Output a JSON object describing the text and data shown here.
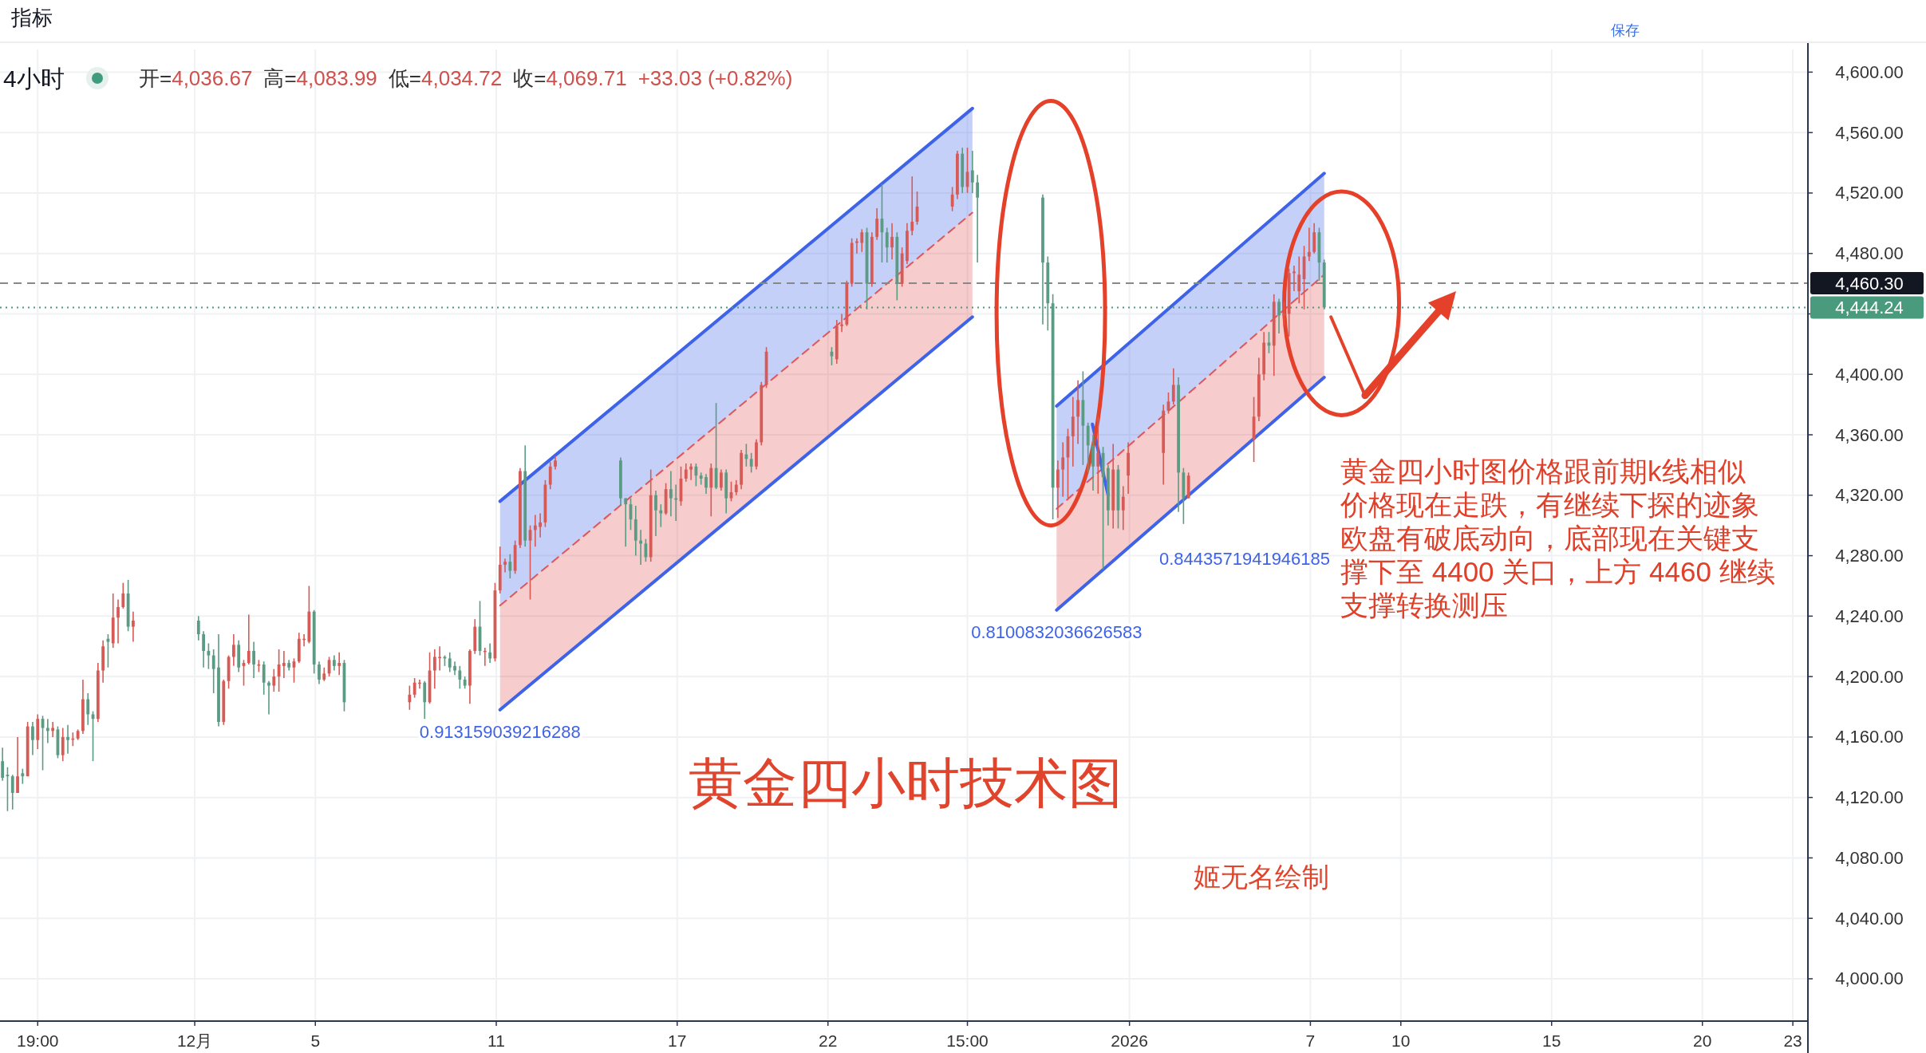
{
  "chart_data": {
    "type": "candlestick",
    "title": "黄金四小时技术图",
    "annotations": [
      "指标",
      "保存",
      "4小时",
      "开=4,036.67",
      "高=4,083.99",
      "低=4,034.72",
      "收=4,069.71",
      "+33.03 (+0.82%)",
      "黄金四小时图价格跟前期k线相似",
      "价格现在走跌，有继续下探的迹象",
      "欧盘有破底动向，底部现在关键支",
      "撑下至 4400 关口，上方 4460 继续",
      "支撑转换测压",
      "姬无名绘制",
      {
        "text": "0.913159039216288",
        "x": "2025-12-11T03:00",
        "y": 4178
      },
      "0.8443571941946185",
      {
        "text": "0.8100832036626583",
        "x": "2025-12-29T14:00",
        "y": 4244
      }
    ],
    "x": [
      "2025-11-24T15:00",
      "2025-11-24T19:00",
      "2025-11-24T23:00",
      "2025-11-25T03:00",
      "2025-11-25T07:00",
      "2025-11-25T11:00",
      "2025-11-25T15:00",
      "2025-11-25T19:00",
      "2025-11-25T23:00",
      "2025-11-26T03:00",
      "2025-11-26T07:00",
      "2025-11-26T11:00",
      "2025-11-26T15:00",
      "2025-11-26T19:00",
      "2025-11-26T23:00",
      "2025-11-27T03:00",
      "2025-11-27T07:00",
      "2025-11-27T11:00",
      "2025-11-27T15:00",
      "2025-11-27T19:00",
      "2025-11-27T23:00",
      "2025-11-28T03:00",
      "2025-11-28T07:00",
      "2025-11-28T11:00",
      "2025-11-28T15:00",
      "2025-11-28T19:00",
      "2025-11-28T23:00",
      "2025-12-01T03:00",
      "2025-12-01T07:00",
      "2025-12-01T11:00",
      "2025-12-01T15:00",
      "2025-12-01T19:00",
      "2025-12-01T23:00",
      "2025-12-02T03:00",
      "2025-12-02T07:00",
      "2025-12-02T11:00",
      "2025-12-02T15:00",
      "2025-12-02T19:00",
      "2025-12-02T23:00",
      "2025-12-03T03:00",
      "2025-12-03T07:00",
      "2025-12-03T11:00",
      "2025-12-03T15:00",
      "2025-12-03T19:00",
      "2025-12-03T23:00",
      "2025-12-04T03:00",
      "2025-12-04T07:00",
      "2025-12-04T11:00",
      "2025-12-04T15:00",
      "2025-12-04T19:00",
      "2025-12-04T23:00",
      "2025-12-05T03:00",
      "2025-12-05T07:00",
      "2025-12-05T11:00",
      "2025-12-05T15:00",
      "2025-12-05T19:00",
      "2025-12-05T23:00",
      "2025-12-08T03:00",
      "2025-12-08T07:00",
      "2025-12-08T11:00",
      "2025-12-08T15:00",
      "2025-12-08T19:00",
      "2025-12-08T23:00",
      "2025-12-09T03:00",
      "2025-12-09T07:00",
      "2025-12-09T11:00",
      "2025-12-09T15:00",
      "2025-12-09T19:00",
      "2025-12-09T23:00",
      "2025-12-10T03:00",
      "2025-12-10T07:00",
      "2025-12-10T11:00",
      "2025-12-10T15:00",
      "2025-12-10T19:00",
      "2025-12-10T23:00",
      "2025-12-11T03:00",
      "2025-12-11T07:00",
      "2025-12-11T11:00",
      "2025-12-11T15:00",
      "2025-12-11T19:00",
      "2025-12-11T23:00",
      "2025-12-12T03:00",
      "2025-12-12T07:00",
      "2025-12-12T11:00",
      "2025-12-12T15:00",
      "2025-12-12T19:00",
      "2025-12-12T23:00",
      "2025-12-15T03:00",
      "2025-12-15T07:00",
      "2025-12-15T11:00",
      "2025-12-15T15:00",
      "2025-12-15T19:00",
      "2025-12-15T23:00",
      "2025-12-16T03:00",
      "2025-12-16T07:00",
      "2025-12-16T11:00",
      "2025-12-16T15:00",
      "2025-12-16T19:00",
      "2025-12-16T23:00",
      "2025-12-17T03:00",
      "2025-12-17T07:00",
      "2025-12-17T11:00",
      "2025-12-17T15:00",
      "2025-12-17T19:00",
      "2025-12-17T23:00",
      "2025-12-18T03:00",
      "2025-12-18T07:00",
      "2025-12-18T11:00",
      "2025-12-18T15:00",
      "2025-12-18T19:00",
      "2025-12-18T23:00",
      "2025-12-19T03:00",
      "2025-12-19T07:00",
      "2025-12-19T11:00",
      "2025-12-19T15:00",
      "2025-12-19T19:00",
      "2025-12-19T23:00",
      "2025-12-22T03:00",
      "2025-12-22T07:00",
      "2025-12-22T11:00",
      "2025-12-22T15:00",
      "2025-12-22T19:00",
      "2025-12-22T23:00",
      "2025-12-23T03:00",
      "2025-12-23T07:00",
      "2025-12-23T11:00",
      "2025-12-23T15:00",
      "2025-12-23T19:00",
      "2025-12-23T23:00",
      "2025-12-24T03:00",
      "2025-12-24T07:00",
      "2025-12-24T11:00",
      "2025-12-24T15:00",
      "2025-12-24T19:00",
      "2025-12-24T23:00",
      "2025-12-26T03:00",
      "2025-12-26T07:00",
      "2025-12-26T11:00",
      "2025-12-26T15:00",
      "2025-12-26T19:00",
      "2025-12-26T23:00",
      "2025-12-29T03:00",
      "2025-12-29T07:00",
      "2025-12-29T11:00",
      "2025-12-29T15:00",
      "2025-12-29T19:00",
      "2025-12-29T23:00",
      "2025-12-30T03:00",
      "2025-12-30T07:00",
      "2025-12-30T11:00",
      "2025-12-30T15:00",
      "2025-12-30T19:00",
      "2025-12-30T23:00",
      "2025-12-31T03:00",
      "2025-12-31T07:00",
      "2025-12-31T11:00",
      "2025-12-31T15:00",
      "2025-12-31T19:00",
      "2025-12-31T23:00",
      "2026-01-02T03:00",
      "2026-01-02T07:00",
      "2026-01-02T11:00",
      "2026-01-02T15:00",
      "2026-01-02T19:00",
      "2026-01-02T23:00",
      "2026-01-05T03:00",
      "2026-01-05T07:00",
      "2026-01-05T11:00",
      "2026-01-05T15:00",
      "2026-01-05T19:00",
      "2026-01-05T23:00",
      "2026-01-06T03:00",
      "2026-01-06T07:00",
      "2026-01-06T11:00",
      "2026-01-06T15:00",
      "2026-01-06T19:00",
      "2026-01-06T23:00",
      "2026-01-07T03:00",
      "2026-01-07T07:00",
      "2026-01-07T11:00"
    ],
    "ohlc": [
      [
        4144,
        4153,
        4131,
        4133
      ],
      [
        4135,
        4140,
        4111,
        4134
      ],
      [
        4134,
        4135,
        4112,
        4123
      ],
      [
        4123,
        4160,
        4123,
        4134
      ],
      [
        4136,
        4139,
        4129,
        4134
      ],
      [
        4134,
        4170,
        4134,
        4167
      ],
      [
        4167,
        4170,
        4148,
        4158
      ],
      [
        4158,
        4175,
        4152,
        4172
      ],
      [
        4172,
        4174,
        4138,
        4166
      ],
      [
        4166,
        4172,
        4156,
        4164
      ],
      [
        4164,
        4170,
        4160,
        4166
      ],
      [
        4165,
        4167,
        4146,
        4148
      ],
      [
        4148,
        4166,
        4144,
        4160
      ],
      [
        4160,
        4168,
        4149,
        4158
      ],
      [
        4159,
        4163,
        4154,
        4159
      ],
      [
        4159,
        4165,
        4158,
        4164
      ],
      [
        4164,
        4198,
        4162,
        4185
      ],
      [
        4185,
        4189,
        4168,
        4175
      ],
      [
        4175,
        4177,
        4144,
        4172
      ],
      [
        4172,
        4209,
        4170,
        4204
      ],
      [
        4204,
        4224,
        4196,
        4220
      ],
      [
        4225,
        4228,
        4206,
        4223
      ],
      [
        4222,
        4255,
        4219,
        4239
      ],
      [
        4239,
        4251,
        4222,
        4246
      ],
      [
        4246,
        4262,
        4245,
        4255
      ],
      [
        4255,
        4264,
        4230,
        4233
      ],
      [
        4233,
        4243,
        4223,
        4237
      ],
      [
        4237,
        4240,
        4224,
        4228
      ],
      [
        4228,
        4230,
        4206,
        4217
      ],
      [
        4217,
        4222,
        4205,
        4214
      ],
      [
        4214,
        4218,
        4189,
        4205
      ],
      [
        4206,
        4228,
        4167,
        4170
      ],
      [
        4170,
        4198,
        4168,
        4197
      ],
      [
        4197,
        4214,
        4192,
        4213
      ],
      [
        4213,
        4228,
        4207,
        4221
      ],
      [
        4221,
        4224,
        4203,
        4206
      ],
      [
        4207,
        4211,
        4194,
        4209
      ],
      [
        4209,
        4241,
        4208,
        4217
      ],
      [
        4217,
        4223,
        4199,
        4208
      ],
      [
        4208,
        4211,
        4203,
        4208
      ],
      [
        4208,
        4210,
        4188,
        4196
      ],
      [
        4196,
        4197,
        4175,
        4194
      ],
      [
        4194,
        4205,
        4190,
        4200
      ],
      [
        4200,
        4218,
        4190,
        4208
      ],
      [
        4207,
        4217,
        4199,
        4209
      ],
      [
        4209,
        4211,
        4204,
        4206
      ],
      [
        4206,
        4212,
        4196,
        4210
      ],
      [
        4210,
        4229,
        4209,
        4225
      ],
      [
        4225,
        4228,
        4220,
        4225
      ],
      [
        4223,
        4260,
        4222,
        4243
      ],
      [
        4243,
        4244,
        4202,
        4208
      ],
      [
        4208,
        4210,
        4195,
        4198
      ],
      [
        4198,
        4206,
        4197,
        4202
      ],
      [
        4202,
        4213,
        4200,
        4211
      ],
      [
        4211,
        4214,
        4204,
        4207
      ],
      [
        4207,
        4216,
        4201,
        4209
      ],
      [
        4209,
        4211,
        4177,
        4183
      ],
      [
        4183,
        4194,
        4178,
        4188
      ],
      [
        4188,
        4199,
        4186,
        4196
      ],
      [
        4196,
        4198,
        4192,
        4196
      ],
      [
        4196,
        4197,
        4172,
        4183
      ],
      [
        4183,
        4216,
        4182,
        4204
      ],
      [
        4204,
        4218,
        4192,
        4213
      ],
      [
        4213,
        4220,
        4204,
        4213
      ],
      [
        4213,
        4214,
        4207,
        4212
      ],
      [
        4212,
        4216,
        4203,
        4206
      ],
      [
        4207,
        4210,
        4201,
        4204
      ],
      [
        4204,
        4207,
        4192,
        4198
      ],
      [
        4198,
        4200,
        4192,
        4194
      ],
      [
        4194,
        4218,
        4182,
        4217
      ],
      [
        4217,
        4238,
        4215,
        4233
      ],
      [
        4233,
        4250,
        4214,
        4217
      ],
      [
        4217,
        4219,
        4207,
        4217
      ],
      [
        4216,
        4222,
        4209,
        4212
      ],
      [
        4212,
        4262,
        4210,
        4257
      ],
      [
        4257,
        4286,
        4255,
        4274
      ],
      [
        4274,
        4278,
        4269,
        4276
      ],
      [
        4276,
        4281,
        4265,
        4270
      ],
      [
        4270,
        4290,
        4268,
        4287
      ],
      [
        4287,
        4338,
        4285,
        4336
      ],
      [
        4336,
        4353,
        4286,
        4290
      ],
      [
        4290,
        4300,
        4251,
        4297
      ],
      [
        4297,
        4307,
        4286,
        4300
      ],
      [
        4299,
        4308,
        4292,
        4302
      ],
      [
        4302,
        4330,
        4299,
        4327
      ],
      [
        4327,
        4342,
        4324,
        4339
      ],
      [
        4339,
        4346,
        4337,
        4343
      ],
      [
        4343,
        4345,
        4313,
        4318
      ],
      [
        4318,
        4318,
        4286,
        4314
      ],
      [
        4314,
        4318,
        4297,
        4304
      ],
      [
        4304,
        4313,
        4280,
        4290
      ],
      [
        4290,
        4297,
        4274,
        4288
      ],
      [
        4288,
        4291,
        4276,
        4279
      ],
      [
        4279,
        4337,
        4276,
        4320
      ],
      [
        4320,
        4323,
        4293,
        4310
      ],
      [
        4310,
        4314,
        4299,
        4308
      ],
      [
        4308,
        4328,
        4307,
        4324
      ],
      [
        4324,
        4336,
        4306,
        4318
      ],
      [
        4318,
        4327,
        4303,
        4317
      ],
      [
        4316,
        4339,
        4313,
        4331
      ],
      [
        4331,
        4341,
        4329,
        4337
      ],
      [
        4337,
        4341,
        4330,
        4339
      ],
      [
        4339,
        4341,
        4326,
        4333
      ],
      [
        4333,
        4335,
        4327,
        4331
      ],
      [
        4332,
        4334,
        4321,
        4325
      ],
      [
        4325,
        4341,
        4306,
        4338
      ],
      [
        4338,
        4381,
        4324,
        4325
      ],
      [
        4325,
        4337,
        4323,
        4335
      ],
      [
        4335,
        4337,
        4308,
        4318
      ],
      [
        4318,
        4329,
        4316,
        4322
      ],
      [
        4322,
        4330,
        4320,
        4327
      ],
      [
        4327,
        4350,
        4324,
        4348
      ],
      [
        4347,
        4354,
        4339,
        4344
      ],
      [
        4344,
        4348,
        4335,
        4339
      ],
      [
        4339,
        4357,
        4337,
        4355
      ],
      [
        4355,
        4395,
        4353,
        4393
      ],
      [
        4393,
        4418,
        4391,
        4415
      ],
      [
        4415,
        4418,
        4406,
        4412
      ],
      [
        4410,
        4436,
        4407,
        4432
      ],
      [
        4432,
        4440,
        4428,
        4433
      ],
      [
        4433,
        4462,
        4432,
        4460
      ],
      [
        4460,
        4490,
        4458,
        4487
      ],
      [
        4487,
        4490,
        4480,
        4488
      ],
      [
        4487,
        4496,
        4481,
        4494
      ],
      [
        4494,
        4497,
        4443,
        4460
      ],
      [
        4460,
        4494,
        4458,
        4491
      ],
      [
        4491,
        4510,
        4489,
        4503
      ],
      [
        4503,
        4526,
        4474,
        4494
      ],
      [
        4494,
        4497,
        4474,
        4484
      ],
      [
        4484,
        4500,
        4476,
        4491
      ],
      [
        4491,
        4494,
        4449,
        4460
      ],
      [
        4460,
        4484,
        4458,
        4480
      ],
      [
        4475,
        4500,
        4473,
        4495
      ],
      [
        4495,
        4531,
        4492,
        4501
      ],
      [
        4501,
        4521,
        4499,
        4511
      ],
      [
        4511,
        4524,
        4508,
        4519
      ],
      [
        4519,
        4548,
        4516,
        4546
      ],
      [
        4546,
        4550,
        4520,
        4524
      ],
      [
        4524,
        4550,
        4520,
        4534
      ],
      [
        4535,
        4548,
        4520,
        4527
      ],
      [
        4527,
        4532,
        4474,
        4517
      ],
      [
        4517,
        4519,
        4433,
        4474
      ],
      [
        4474,
        4478,
        4429,
        4447
      ],
      [
        4447,
        4453,
        4304,
        4325
      ],
      [
        4325,
        4343,
        4305,
        4337
      ],
      [
        4337,
        4355,
        4319,
        4345
      ],
      [
        4345,
        4364,
        4318,
        4359
      ],
      [
        4359,
        4385,
        4339,
        4372
      ],
      [
        4372,
        4396,
        4354,
        4383
      ],
      [
        4383,
        4402,
        4340,
        4366
      ],
      [
        4366,
        4368,
        4335,
        4353
      ],
      [
        4353,
        4360,
        4323,
        4339
      ],
      [
        4339,
        4372,
        4321,
        4348
      ],
      [
        4348,
        4352,
        4271,
        4332
      ],
      [
        4338,
        4340,
        4300,
        4310
      ],
      [
        4310,
        4354,
        4298,
        4337
      ],
      [
        4337,
        4340,
        4298,
        4310
      ],
      [
        4310,
        4326,
        4297,
        4319
      ],
      [
        4333,
        4355,
        4321,
        4348
      ],
      [
        4348,
        4380,
        4327,
        4376
      ],
      [
        4376,
        4388,
        4374,
        4382
      ],
      [
        4382,
        4404,
        4380,
        4393
      ],
      [
        4393,
        4398,
        4309,
        4335
      ],
      [
        4335,
        4338,
        4301,
        4318
      ],
      [
        4318,
        4335,
        4318,
        4333
      ],
      [
        4357,
        4385,
        4342,
        4372
      ],
      [
        4372,
        4411,
        4369,
        4400
      ],
      [
        4400,
        4428,
        4396,
        4421
      ],
      [
        4421,
        4428,
        4414,
        4419
      ],
      [
        4419,
        4453,
        4399,
        4448
      ],
      [
        4448,
        4450,
        4427,
        4439
      ],
      [
        4439,
        4448,
        4433,
        4440
      ],
      [
        4440,
        4470,
        4425,
        4467
      ],
      [
        4467,
        4472,
        4455,
        4468
      ],
      [
        4455,
        4478,
        4447,
        4466
      ],
      [
        4463,
        4485,
        4443,
        4478
      ],
      [
        4478,
        4497,
        4475,
        4481
      ],
      [
        4481,
        4500,
        4480,
        4494
      ],
      [
        4494,
        4497,
        4462,
        4474
      ],
      [
        4474,
        4476,
        4443,
        4444.24
      ]
    ],
    "colors": [
      "#5b9a83",
      "#5b9a83",
      "#5b9a83",
      "#d65a55",
      "#5b9a83",
      "#d65a55",
      "#5b9a83",
      "#d65a55",
      "#5b9a83",
      "#5b9a83",
      "#d65a55",
      "#5b9a83",
      "#d65a55",
      "#5b9a83",
      "#d65a55",
      "#d65a55",
      "#d65a55",
      "#5b9a83",
      "#5b9a83",
      "#d65a55",
      "#d65a55",
      "#5b9a83",
      "#d65a55",
      "#d65a55",
      "#d65a55",
      "#5b9a83",
      "#d65a55",
      "#5b9a83",
      "#5b9a83",
      "#5b9a83",
      "#5b9a83",
      "#5b9a83",
      "#d65a55",
      "#d65a55",
      "#d65a55",
      "#5b9a83",
      "#d65a55",
      "#d65a55",
      "#5b9a83",
      "#d65a55",
      "#5b9a83",
      "#5b9a83",
      "#d65a55",
      "#d65a55",
      "#d65a55",
      "#5b9a83",
      "#d65a55",
      "#d65a55",
      "#d65a55",
      "#d65a55",
      "#5b9a83",
      "#5b9a83",
      "#d65a55",
      "#d65a55",
      "#5b9a83",
      "#d65a55",
      "#5b9a83",
      "#d65a55",
      "#d65a55",
      "#d65a55",
      "#5b9a83",
      "#d65a55",
      "#d65a55",
      "#d65a55",
      "#5b9a83",
      "#5b9a83",
      "#5b9a83",
      "#5b9a83",
      "#5b9a83",
      "#d65a55",
      "#d65a55",
      "#5b9a83",
      "#d65a55",
      "#5b9a83",
      "#d65a55",
      "#d65a55",
      "#d65a55",
      "#5b9a83",
      "#d65a55",
      "#d65a55",
      "#5b9a83",
      "#d65a55",
      "#d65a55",
      "#d65a55",
      "#d65a55",
      "#d65a55",
      "#d65a55",
      "#5b9a83",
      "#5b9a83",
      "#5b9a83",
      "#5b9a83",
      "#5b9a83",
      "#5b9a83",
      "#d65a55",
      "#5b9a83",
      "#5b9a83",
      "#d65a55",
      "#5b9a83",
      "#5b9a83",
      "#d65a55",
      "#d65a55",
      "#d65a55",
      "#5b9a83",
      "#5b9a83",
      "#5b9a83",
      "#d65a55",
      "#5b9a83",
      "#d65a55",
      "#5b9a83",
      "#d65a55",
      "#d65a55",
      "#d65a55",
      "#5b9a83",
      "#5b9a83",
      "#d65a55",
      "#d65a55",
      "#d65a55",
      "#5b9a83",
      "#d65a55",
      "#d65a55",
      "#d65a55",
      "#d65a55",
      "#d65a55",
      "#d65a55",
      "#5b9a83",
      "#d65a55",
      "#d65a55",
      "#5b9a83",
      "#5b9a83",
      "#d65a55",
      "#5b9a83",
      "#d65a55",
      "#d65a55",
      "#d65a55",
      "#d65a55",
      "#d65a55",
      "#d65a55",
      "#5b9a83",
      "#d65a55",
      "#5b9a83",
      "#5b9a83",
      "#5b9a83",
      "#5b9a83",
      "#5b9a83",
      "#d65a55",
      "#d65a55",
      "#d65a55",
      "#d65a55",
      "#d65a55",
      "#5b9a83",
      "#5b9a83",
      "#5b9a83",
      "#d65a55",
      "#5b9a83",
      "#5b9a83",
      "#d65a55",
      "#5b9a83",
      "#d65a55",
      "#d65a55",
      "#d65a55",
      "#d65a55",
      "#d65a55",
      "#5b9a83",
      "#5b9a83",
      "#d65a55",
      "#d65a55",
      "#d65a55",
      "#d65a55",
      "#5b9a83",
      "#d65a55",
      "#5b9a83",
      "#d65a55",
      "#d65a55",
      "#d65a55",
      "#d65a55",
      "#d65a55",
      "#d65a55",
      "#d65a55",
      "#5b9a83",
      "#5b9a83"
    ],
    "series": [
      {
        "type": "line",
        "x": [
          "2025-12-11T03:00",
          "2025-12-26T19:00"
        ],
        "values": [
          4316,
          4576
        ],
        "lower": [
          4247,
          4507
        ],
        "upper": [
          4316,
          4576
        ],
        "color": "#3e63e8",
        "line_style": "solid"
      },
      {
        "type": "line",
        "x": [
          "2025-12-11T03:00",
          "2025-12-26T19:00"
        ],
        "values": [
          4247,
          4507
        ],
        "lower": [
          4178,
          4438
        ],
        "upper": [
          4247,
          4507
        ],
        "color": "#e0555a",
        "line_style": "dashed"
      },
      {
        "type": "line",
        "x": [
          "2025-12-11T03:00",
          "2025-12-26T19:00"
        ],
        "values": [
          4178,
          4438
        ],
        "color": "#3e63e8",
        "line_style": "solid"
      },
      {
        "type": "line",
        "x": [
          "2025-12-29T14:00",
          "2026-01-07T11:00"
        ],
        "values": [
          4379,
          4533
        ],
        "lower": [
          4311,
          4466
        ],
        "upper": [
          4379,
          4533
        ],
        "color": "#3e63e8",
        "line_style": "solid"
      },
      {
        "type": "line",
        "x": [
          "2025-12-29T14:00",
          "2026-01-07T11:00"
        ],
        "values": [
          4311,
          4466
        ],
        "lower": [
          4244,
          4398
        ],
        "upper": [
          4311,
          4466
        ],
        "color": "#e0555a",
        "line_style": "dashed"
      },
      {
        "type": "line",
        "x": [
          "2025-12-29T14:00",
          "2026-01-07T11:00"
        ],
        "values": [
          4244,
          4398
        ],
        "color": "#3e63e8",
        "line_style": "solid"
      },
      {
        "type": "line",
        "x": [
          "2025-12-30T18:30",
          "2025-12-31T07:00"
        ],
        "values": [
          4367,
          4320
        ],
        "color": "#3e63e8",
        "line_style": "solid"
      }
    ],
    "xlim": [
      "2025-11-24T13:00",
      "2026-01-23T12:00"
    ],
    "ylim": [
      3972,
      4615
    ],
    "xticks": [
      {
        "value": "2025-11-25T19:00",
        "label": "19:00"
      },
      {
        "value": "2025-12-01",
        "label": "12月"
      },
      {
        "value": "2025-12-05",
        "label": "5"
      },
      {
        "value": "2025-12-11",
        "label": "11"
      },
      {
        "value": "2025-12-17",
        "label": "17"
      },
      {
        "value": "2025-12-22",
        "label": "22"
      },
      {
        "value": "2025-12-26T15:00",
        "label": "15:00"
      },
      {
        "value": "2026-01-01",
        "label": "2026"
      },
      {
        "value": "2026-01-07",
        "label": "7"
      },
      {
        "value": "2026-01-10",
        "label": "10"
      },
      {
        "value": "2026-01-15",
        "label": "15"
      },
      {
        "value": "2026-01-20",
        "label": "20"
      },
      {
        "value": "2026-01-23",
        "label": "23"
      }
    ],
    "yticks": [
      {
        "value": 4000,
        "label": "4,000.00"
      },
      {
        "value": 4040,
        "label": "4,040.00"
      },
      {
        "value": 4080,
        "label": "4,080.00"
      },
      {
        "value": 4120,
        "label": "4,120.00"
      },
      {
        "value": 4160,
        "label": "4,160.00"
      },
      {
        "value": 4200,
        "label": "4,200.00"
      },
      {
        "value": 4240,
        "label": "4,240.00"
      },
      {
        "value": 4280,
        "label": "4,280.00"
      },
      {
        "value": 4320,
        "label": "4,320.00"
      },
      {
        "value": 4360,
        "label": "4,360.00"
      },
      {
        "value": 4400,
        "label": "4,400.00"
      },
      {
        "value": 4440,
        "label": null
      },
      {
        "value": 4480,
        "label": "4,480.00"
      },
      {
        "value": 4520,
        "label": "4,520.00"
      },
      {
        "value": 4560,
        "label": "4,560.00"
      },
      {
        "value": 4600,
        "label": "4,600.00"
      }
    ],
    "ref_lines": [
      {
        "axis": "y",
        "value": 4460.3,
        "label": "4,460.30",
        "color": "#888888",
        "line_style": "dashed"
      },
      {
        "axis": "y",
        "value": 4444.24,
        "label": "4,444.24",
        "color": "#4a9a7e",
        "line_style": "dotted"
      }
    ],
    "grid": true
  }
}
